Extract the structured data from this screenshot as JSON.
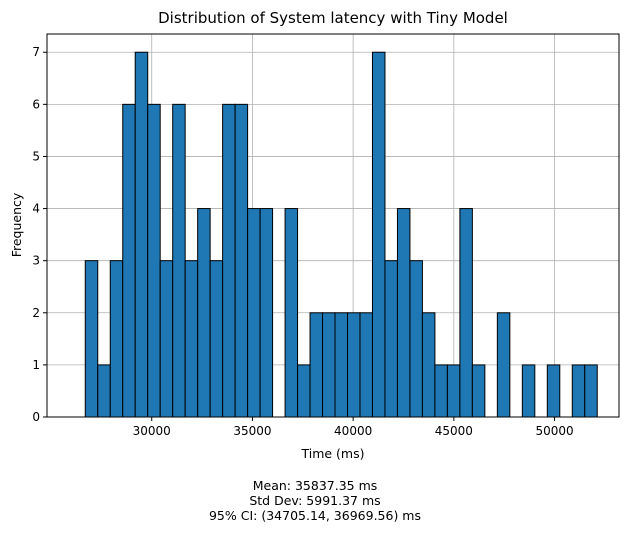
{
  "chart_data": {
    "type": "bar",
    "title": "Distribution of System latency with Tiny Model",
    "xlabel": "Time (ms)",
    "ylabel": "Frequency",
    "xlim": [
      24800,
      53200
    ],
    "ylim": [
      0,
      7.35
    ],
    "xticks": [
      30000,
      35000,
      40000,
      45000,
      50000
    ],
    "xtick_labels": [
      "30000",
      "35000",
      "40000",
      "45000",
      "50000"
    ],
    "yticks": [
      0,
      1,
      2,
      3,
      4,
      5,
      6,
      7
    ],
    "ytick_labels": [
      "0",
      "1",
      "2",
      "3",
      "4",
      "5",
      "6",
      "7"
    ],
    "grid": true,
    "bar_color": "#1f77b4",
    "edge_color": "#000000",
    "bin_start": 26700,
    "bin_width": 620,
    "values": [
      3,
      1,
      3,
      6,
      7,
      6,
      3,
      6,
      3,
      4,
      3,
      6,
      6,
      4,
      4,
      0,
      4,
      1,
      2,
      2,
      2,
      2,
      2,
      7,
      3,
      4,
      3,
      2,
      1,
      1,
      4,
      1,
      0,
      2,
      0,
      1,
      0,
      1,
      0,
      1,
      1
    ]
  },
  "stats": {
    "mean": "Mean: 35837.35 ms",
    "std": "Std Dev: 5991.37 ms",
    "ci": "95% CI: (34705.14, 36969.56) ms"
  }
}
